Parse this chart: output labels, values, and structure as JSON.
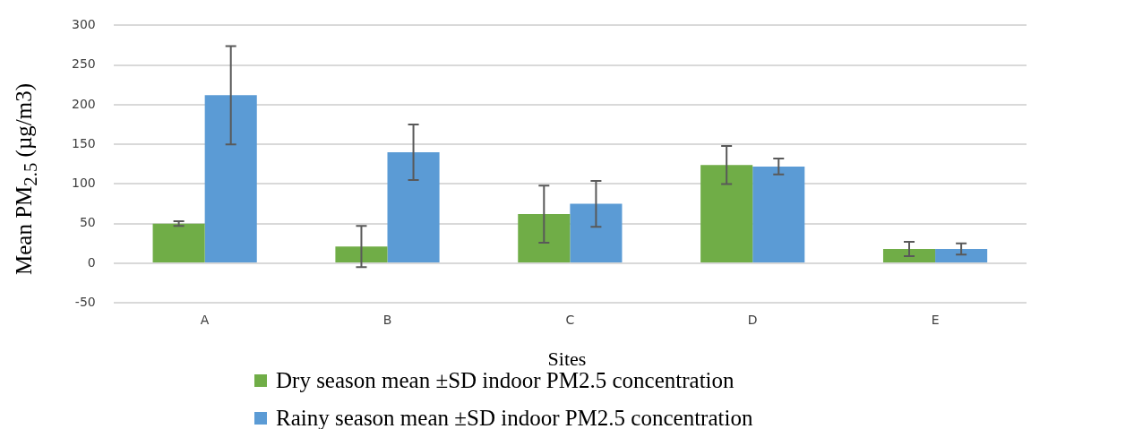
{
  "chart_data": {
    "type": "bar",
    "xlabel": "Sites",
    "ylabel": "Mean PM$_{2.5}$ (µg/m3)",
    "categories": [
      "A",
      "B",
      "C",
      "D",
      "E"
    ],
    "series": [
      {
        "name": "Dry season mean ±SD indoor PM2.5 concentration",
        "color": "#70ad47",
        "values": [
          50,
          21,
          62,
          124,
          18
        ],
        "errors": [
          3,
          26,
          36,
          24,
          9
        ]
      },
      {
        "name": "Rainy season mean ±SD indoor PM2.5 concentration",
        "color": "#5b9bd5",
        "values": [
          212,
          140,
          75,
          122,
          18
        ],
        "errors": [
          62,
          35,
          29,
          10,
          7
        ]
      }
    ],
    "ylim": [
      -50,
      300
    ],
    "yticks": [
      -50,
      0,
      50,
      100,
      150,
      200,
      250,
      300
    ],
    "grid": "y",
    "legend": "bottom"
  }
}
